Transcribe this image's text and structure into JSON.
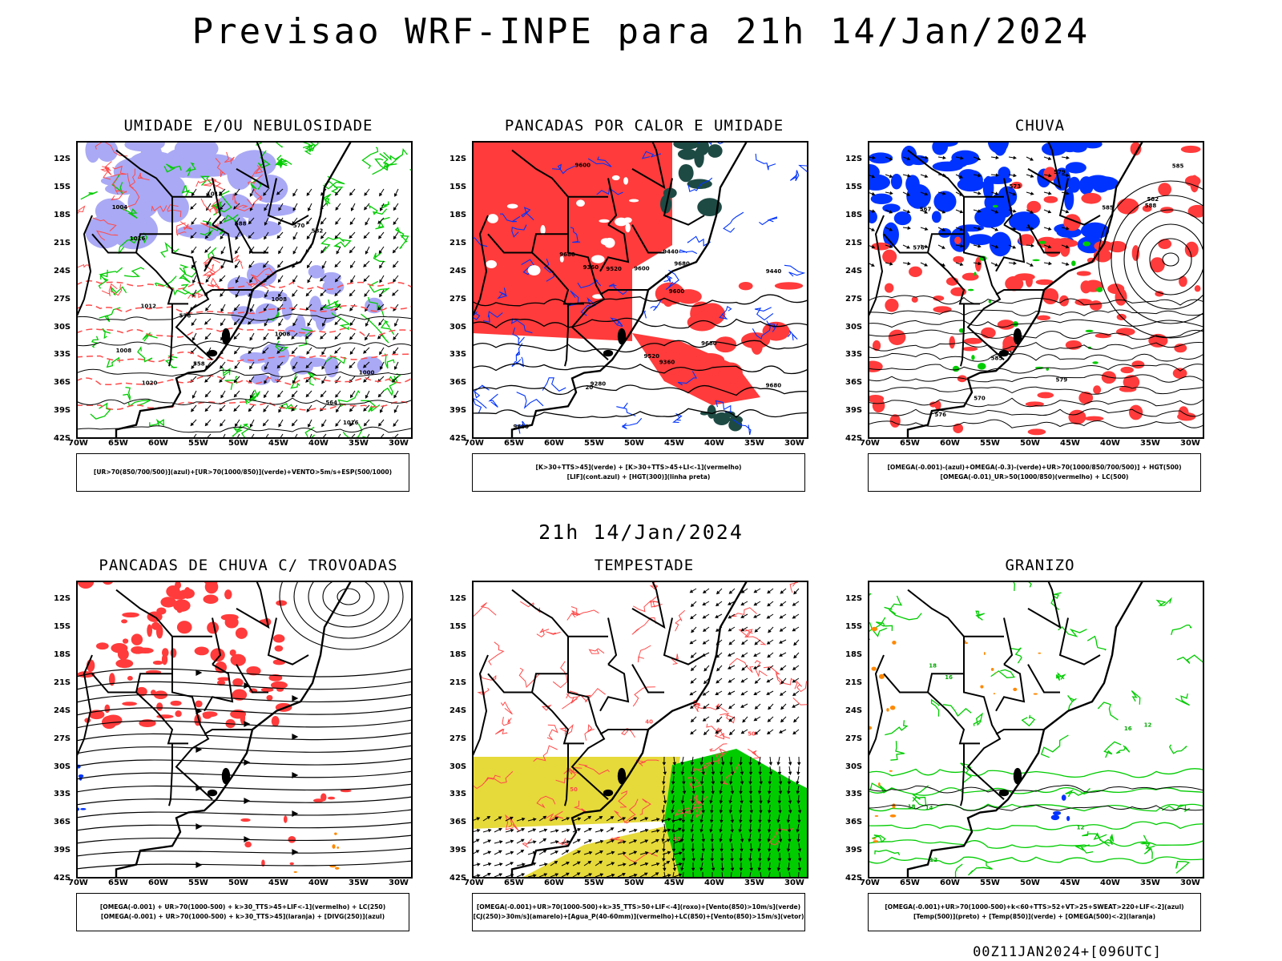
{
  "header": {
    "title": "Previsao WRF-INPE  para 21h 14/Jan/2024"
  },
  "middle": {
    "title": "21h 14/Jan/2024"
  },
  "footer": {
    "run": "00Z11JAN2024+[096UTC]"
  },
  "axes": {
    "lat_labels": [
      "12S",
      "15S",
      "18S",
      "21S",
      "24S",
      "27S",
      "30S",
      "33S",
      "36S",
      "39S",
      "42S"
    ],
    "lon_labels": [
      "70W",
      "65W",
      "60W",
      "55W",
      "50W",
      "45W",
      "40W",
      "35W",
      "30W"
    ]
  },
  "colors": {
    "blue": "#0033ff",
    "green": "#00cc00",
    "red": "#ff3b3b",
    "lavender": "#a9a9f5",
    "yellow": "#e6d93a",
    "darkteal": "#1e4a44",
    "orange": "#ff8800"
  },
  "panels": [
    {
      "title": "UMIDADE E/OU NEBULOSIDADE",
      "caption": [
        "[UR>70(850/700/500)](azul)+[UR>70(1000/850)](verde)+VENTO>5m/s+ESP(500/1000)"
      ],
      "contour_labels": [
        "1016",
        "1012",
        "1008",
        "1004",
        "1000",
        "1016",
        "1020",
        "576",
        "582",
        "588",
        "570",
        "564",
        "558",
        "1012",
        "1008",
        "1008"
      ]
    },
    {
      "title": "PANCADAS POR CALOR E UMIDADE",
      "caption": [
        "[K>30+TTS>45](verde) + [K>30+TTS>45+LI<-1](vermelho)",
        "[LIF](cont.azul) + [HGT(300)](linha preta)"
      ],
      "contour_labels": [
        "9600",
        "9680",
        "9600",
        "9680",
        "9680",
        "9680",
        "9600",
        "9600",
        "9520",
        "9520",
        "9440",
        "9440",
        "9360",
        "9280",
        "9360",
        "20"
      ]
    },
    {
      "title": "CHUVA",
      "caption": [
        "[OMEGA(-0.001)-(azul)+OMEGA(-0.3)-(verde)+UR>70(1000/850/700/500)] + HGT(500)",
        "[OMEGA(-0.01)_UR>50(1000/850)(vermelho) + LC(500)"
      ],
      "contour_labels": [
        "585",
        "582",
        "579",
        "576",
        "573",
        "570",
        "585",
        "582",
        "579",
        "576",
        "567",
        "585",
        "588"
      ]
    },
    {
      "title": "PANCADAS DE CHUVA C/ TROVOADAS",
      "caption": [
        "[OMEGA(-0.001) + UR>70(1000-500) + k>30_TTS>45+LIF<-1](vermelho) + LC(250)",
        "[OMEGA(-0.001) + UR>70(1000-500) + k>30_TTS>45](laranja) + [DIVG(250)](azul)"
      ],
      "contour_labels": []
    },
    {
      "title": "TEMPESTADE",
      "caption": [
        "[OMEGA(-0.001)+UR>70(1000-500)+k>35_TTS>50+LIF<-4](roxo)+[Vento(850)>10m/s](verde)",
        "[CJ(250)>30m/s](amarelo)+[Agua_P(40-60mm)](vermelho)+LC(850)+[Vento(850)>15m/s](vetor)"
      ],
      "contour_labels": [
        "50",
        "40",
        "40",
        "50"
      ]
    },
    {
      "title": "GRANIZO",
      "caption": [
        "[OMEGA(-0.001)+UR>70(1000-500)+k<60+TTS>52+VT>25+SWEAT>220+LIF<-2](azul)",
        "[Temp(500)](preto) + [Temp(850)](verde) + [OMEGA(500)<-2](laranja)"
      ],
      "contour_labels": [
        "18",
        "18",
        "16",
        "16",
        "12",
        "12",
        "14",
        "12"
      ]
    }
  ]
}
